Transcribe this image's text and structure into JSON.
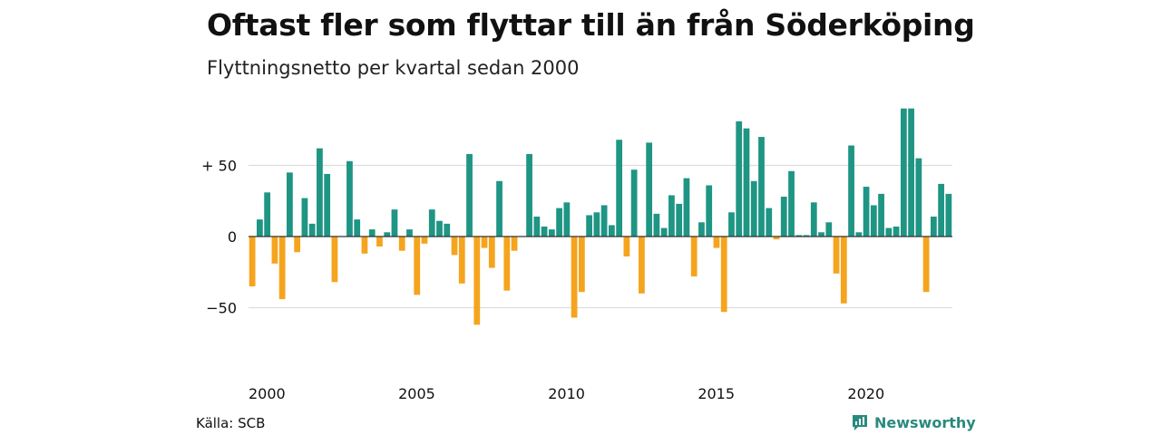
{
  "header": {
    "title": "Oftast fler som flyttar till än från Söderköping",
    "subtitle": "Flyttningsnetto per kvartal sedan 2000"
  },
  "footer": {
    "source": "Källa: SCB",
    "brand": "Newsworthy",
    "brand_icon": "newsworthy-logo-icon"
  },
  "colors": {
    "positive": "#1f9584",
    "negative": "#f5a41d",
    "grid": "#dddddd",
    "zero_line": "#333333"
  },
  "chart_data": {
    "type": "bar",
    "title": "Oftast fler som flyttar till än från Söderköping",
    "subtitle": "Flyttningsnetto per kvartal sedan 2000",
    "xlabel": "",
    "ylabel": "",
    "x_start": "2000 Q1",
    "x_tick_labels": [
      "2000",
      "2005",
      "2010",
      "2015",
      "2020"
    ],
    "y_ticks": [
      50,
      0,
      -50
    ],
    "y_tick_labels": [
      "+ 50",
      "0",
      "−50"
    ],
    "ylim": [
      -80,
      90
    ],
    "grid": true,
    "values": [
      -35,
      12,
      31,
      -19,
      -44,
      45,
      -11,
      27,
      9,
      62,
      44,
      -32,
      0,
      53,
      12,
      -12,
      5,
      -7,
      3,
      19,
      -10,
      5,
      -41,
      -5,
      19,
      11,
      9,
      -13,
      -33,
      58,
      -62,
      -8,
      -22,
      39,
      -38,
      -10,
      0,
      58,
      14,
      7,
      5,
      20,
      24,
      -57,
      -39,
      15,
      17,
      22,
      8,
      68,
      -14,
      47,
      -40,
      66,
      16,
      6,
      29,
      23,
      41,
      -28,
      10,
      36,
      -8,
      -53,
      17,
      81,
      76,
      39,
      70,
      20,
      -2,
      28,
      46,
      1,
      1,
      24,
      3,
      10,
      -26,
      -47,
      64,
      3,
      35,
      22,
      30,
      6,
      7,
      90,
      90,
      55,
      -39,
      14,
      37,
      30
    ]
  }
}
